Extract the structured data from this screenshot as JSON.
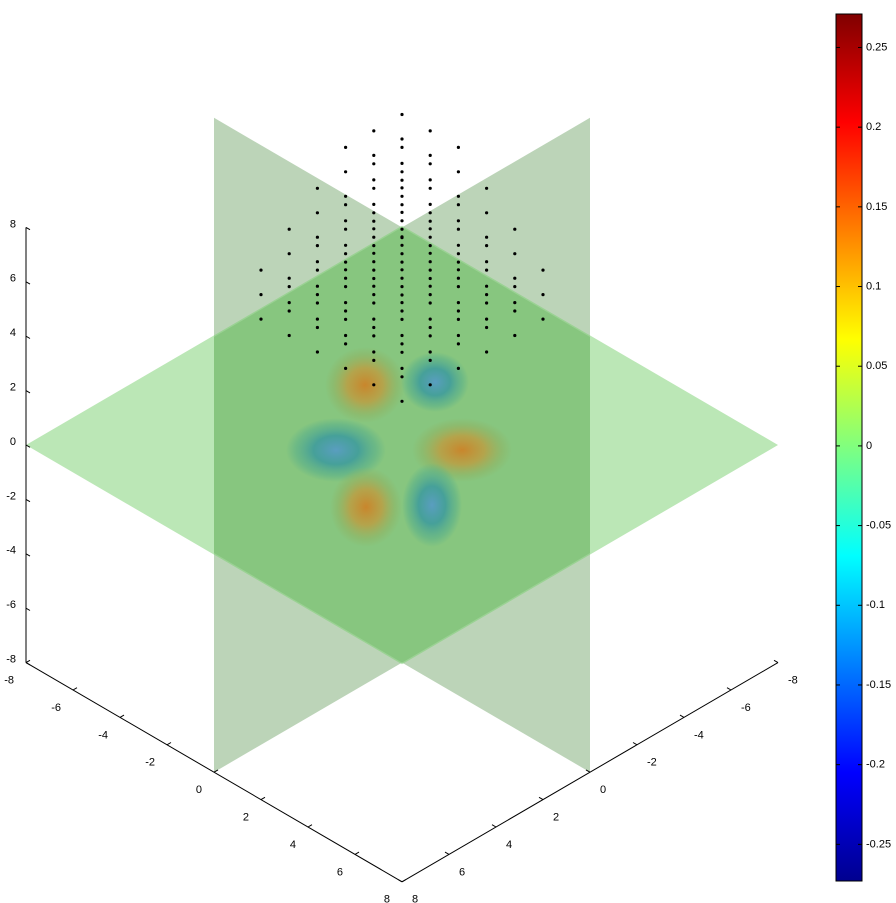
{
  "chart_data": {
    "type": "volume-slice",
    "xticks": [
      -8,
      -6,
      -4,
      -2,
      0,
      2,
      4,
      6,
      8
    ],
    "yticks": [
      -8,
      -6,
      -4,
      -2,
      0,
      2,
      4,
      6,
      8
    ],
    "zticks": [
      -8,
      -6,
      -4,
      -2,
      0,
      2,
      4,
      6,
      8
    ],
    "xlim": [
      -8,
      8
    ],
    "ylim": [
      -8,
      8
    ],
    "zlim": [
      -8,
      8
    ],
    "colormap": "jet",
    "clim": [
      -0.273,
      0.271
    ],
    "cticks": [
      -0.25,
      -0.2,
      -0.15,
      -0.1,
      -0.05,
      0,
      0.05,
      0.1,
      0.15,
      0.2,
      0.25
    ]
  }
}
